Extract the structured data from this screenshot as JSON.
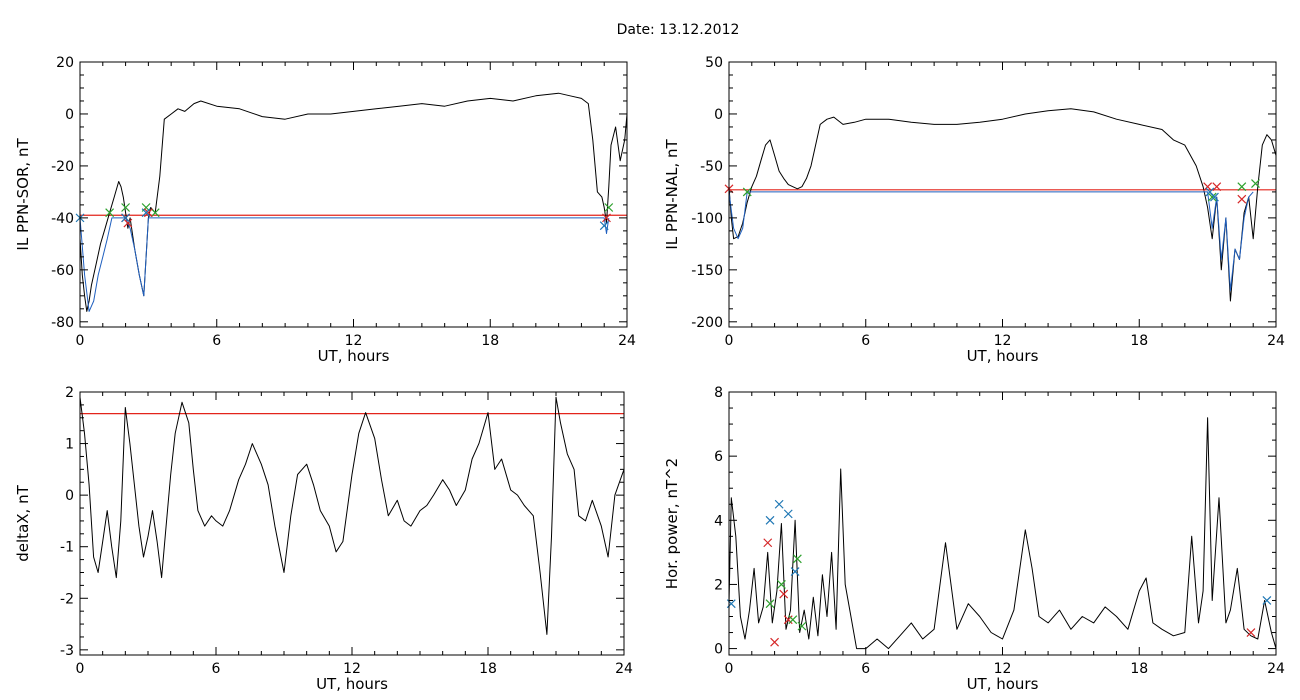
{
  "figure": {
    "title": "Date:  13.12.2012"
  },
  "chart_data": [
    {
      "id": "p1",
      "type": "line",
      "xlabel": "UT, hours",
      "ylabel": "IL PPN-SOR, nT",
      "xlim": [
        0,
        24
      ],
      "ylim": [
        -82,
        20
      ],
      "xticks": [
        0,
        6,
        12,
        18,
        24
      ],
      "yticks": [
        20,
        0,
        -20,
        -40,
        -60,
        -80
      ],
      "threshold": -39,
      "series": [
        {
          "color": "#000000",
          "x": [
            0,
            0.1,
            0.2,
            0.3,
            0.4,
            0.5,
            0.7,
            0.9,
            1.1,
            1.3,
            1.5,
            1.7,
            1.8,
            1.9,
            2.0,
            2.1,
            2.2,
            2.4,
            2.6,
            2.8,
            2.9,
            3.0,
            3.1,
            3.3,
            3.5,
            3.7,
            4.0,
            4.3,
            4.6,
            5.0,
            5.3,
            6,
            7,
            8,
            9,
            10,
            11,
            12,
            13,
            14,
            15,
            16,
            17,
            18,
            19,
            20,
            21,
            21.5,
            22,
            22.3,
            22.5,
            22.7,
            22.9,
            23.0,
            23.1,
            23.2,
            23.3,
            23.5,
            23.7,
            23.9,
            24
          ],
          "y": [
            -48,
            -62,
            -70,
            -76,
            -72,
            -66,
            -58,
            -50,
            -44,
            -38,
            -32,
            -26,
            -28,
            -32,
            -38,
            -44,
            -40,
            -52,
            -62,
            -70,
            -55,
            -40,
            -36,
            -38,
            -24,
            -2,
            0,
            2,
            1,
            4,
            5,
            3,
            2,
            -1,
            -2,
            0,
            0,
            1,
            2,
            3,
            4,
            3,
            5,
            6,
            5,
            7,
            8,
            7,
            6,
            4,
            -10,
            -30,
            -32,
            -36,
            -42,
            -28,
            -12,
            -5,
            -18,
            -10,
            0
          ]
        },
        {
          "color": "#1f5fbf",
          "x": [
            0,
            0.2,
            0.4,
            0.6,
            0.8,
            1.0,
            1.2,
            1.4,
            2.0,
            2.2,
            2.4,
            2.6,
            2.8,
            3.0,
            23.0,
            23.1,
            23.2
          ],
          "y": [
            -40,
            -62,
            -76,
            -72,
            -62,
            -55,
            -48,
            -40,
            -40,
            -44,
            -52,
            -62,
            -70,
            -40,
            -40,
            -46,
            -40
          ]
        }
      ],
      "markers": [
        {
          "symbol": "x",
          "color": "#2ca02c",
          "x": [
            1.3,
            2.0,
            2.9,
            3.3,
            23.2
          ],
          "y": [
            -38,
            -36,
            -36,
            -38,
            -36
          ]
        },
        {
          "symbol": "x",
          "color": "#d62728",
          "x": [
            2.0,
            2.1,
            3.0,
            23.1
          ],
          "y": [
            -40,
            -42,
            -38,
            -40
          ]
        },
        {
          "symbol": "x",
          "color": "#1f77b4",
          "x": [
            0,
            2.0,
            2.9,
            23.0
          ],
          "y": [
            -40,
            -40,
            -38,
            -43
          ]
        }
      ]
    },
    {
      "id": "p2",
      "type": "line",
      "xlabel": "UT, hours",
      "ylabel": "IL PPN-NAL, nT",
      "xlim": [
        0,
        24
      ],
      "ylim": [
        -205,
        50
      ],
      "xticks": [
        0,
        6,
        12,
        18,
        24
      ],
      "yticks": [
        50,
        0,
        -50,
        -100,
        -150,
        -200
      ],
      "threshold": -73,
      "series": [
        {
          "color": "#000000",
          "x": [
            0,
            0.1,
            0.2,
            0.4,
            0.6,
            0.8,
            1.0,
            1.2,
            1.4,
            1.6,
            1.8,
            2.0,
            2.2,
            2.4,
            2.6,
            2.8,
            3.0,
            3.2,
            3.4,
            3.6,
            3.8,
            4.0,
            4.3,
            4.6,
            5.0,
            5.5,
            6,
            7,
            8,
            9,
            10,
            11,
            12,
            13,
            14,
            15,
            16,
            17,
            18,
            19,
            19.5,
            20,
            20.5,
            20.8,
            21.0,
            21.2,
            21.4,
            21.6,
            21.8,
            22.0,
            22.2,
            22.4,
            22.6,
            22.8,
            23.0,
            23.2,
            23.4,
            23.6,
            23.8,
            24
          ],
          "y": [
            -70,
            -100,
            -120,
            -118,
            -105,
            -85,
            -70,
            -60,
            -45,
            -30,
            -25,
            -40,
            -55,
            -62,
            -68,
            -70,
            -72,
            -70,
            -62,
            -50,
            -30,
            -10,
            -5,
            -3,
            -10,
            -8,
            -5,
            -5,
            -8,
            -10,
            -10,
            -8,
            -5,
            0,
            3,
            5,
            2,
            -5,
            -10,
            -15,
            -25,
            -30,
            -50,
            -70,
            -90,
            -120,
            -80,
            -150,
            -100,
            -180,
            -130,
            -140,
            -95,
            -80,
            -120,
            -70,
            -30,
            -20,
            -25,
            -40
          ]
        },
        {
          "color": "#1f5fbf",
          "x": [
            0,
            0.2,
            0.4,
            0.6,
            0.8,
            21.0,
            21.2,
            21.4,
            21.6,
            21.8,
            22.0,
            22.2,
            22.4,
            22.6,
            22.8,
            23.0
          ],
          "y": [
            -75,
            -110,
            -120,
            -110,
            -75,
            -75,
            -110,
            -80,
            -140,
            -100,
            -170,
            -130,
            -140,
            -100,
            -80,
            -75
          ]
        }
      ],
      "markers": [
        {
          "symbol": "x",
          "color": "#2ca02c",
          "x": [
            0.8,
            21.2,
            22.5,
            23.1
          ],
          "y": [
            -75,
            -80,
            -70,
            -67
          ]
        },
        {
          "symbol": "x",
          "color": "#d62728",
          "x": [
            0,
            21.0,
            21.4,
            22.5
          ],
          "y": [
            -72,
            -70,
            -70,
            -82
          ]
        },
        {
          "symbol": "x",
          "color": "#1f77b4",
          "x": [
            21.1,
            21.3
          ],
          "y": [
            -75,
            -80
          ]
        }
      ]
    },
    {
      "id": "p3",
      "type": "line",
      "xlabel": "UT, hours",
      "ylabel": "deltaX, nT",
      "xlim": [
        0,
        24
      ],
      "ylim": [
        -3.1,
        2.0
      ],
      "xticks": [
        0,
        6,
        12,
        18,
        24
      ],
      "yticks": [
        2,
        1,
        0,
        -1,
        -2,
        -3
      ],
      "threshold": 1.58,
      "series": [
        {
          "color": "#000000",
          "x": [
            0,
            0.2,
            0.4,
            0.6,
            0.8,
            1.0,
            1.2,
            1.4,
            1.6,
            1.8,
            2.0,
            2.2,
            2.4,
            2.6,
            2.8,
            3.0,
            3.2,
            3.4,
            3.6,
            3.8,
            4.0,
            4.2,
            4.5,
            4.8,
            5.0,
            5.2,
            5.5,
            5.8,
            6.0,
            6.3,
            6.6,
            7.0,
            7.3,
            7.6,
            8.0,
            8.3,
            8.6,
            9.0,
            9.3,
            9.6,
            10.0,
            10.3,
            10.6,
            11.0,
            11.3,
            11.6,
            12.0,
            12.3,
            12.6,
            13.0,
            13.3,
            13.6,
            14.0,
            14.3,
            14.6,
            15.0,
            15.3,
            15.6,
            16.0,
            16.3,
            16.6,
            17.0,
            17.3,
            17.6,
            18.0,
            18.3,
            18.6,
            19.0,
            19.3,
            19.6,
            20.0,
            20.3,
            20.6,
            20.8,
            21.0,
            21.2,
            21.5,
            21.8,
            22.0,
            22.3,
            22.6,
            23.0,
            23.3,
            23.6,
            24.0
          ],
          "y": [
            1.9,
            1.2,
            0.2,
            -1.2,
            -1.5,
            -0.9,
            -0.3,
            -1.0,
            -1.6,
            -0.5,
            1.7,
            1.0,
            0.2,
            -0.6,
            -1.2,
            -0.8,
            -0.3,
            -0.9,
            -1.6,
            -0.6,
            0.4,
            1.2,
            1.8,
            1.4,
            0.5,
            -0.3,
            -0.6,
            -0.4,
            -0.5,
            -0.6,
            -0.3,
            0.3,
            0.6,
            1.0,
            0.6,
            0.2,
            -0.6,
            -1.5,
            -0.4,
            0.4,
            0.6,
            0.2,
            -0.3,
            -0.6,
            -1.1,
            -0.9,
            0.4,
            1.2,
            1.6,
            1.1,
            0.3,
            -0.4,
            -0.1,
            -0.5,
            -0.6,
            -0.3,
            -0.2,
            0.0,
            0.3,
            0.1,
            -0.2,
            0.1,
            0.7,
            1.0,
            1.6,
            0.5,
            0.7,
            0.1,
            0.0,
            -0.2,
            -0.4,
            -1.5,
            -2.7,
            -0.8,
            1.9,
            1.4,
            0.8,
            0.5,
            -0.4,
            -0.5,
            -0.1,
            -0.6,
            -1.2,
            0.0,
            0.5
          ]
        }
      ],
      "markers": []
    },
    {
      "id": "p4",
      "type": "line",
      "xlabel": "UT, hours",
      "ylabel": "Hor. power, nT^2",
      "xlim": [
        0,
        24
      ],
      "ylim": [
        -0.2,
        8
      ],
      "xticks": [
        0,
        6,
        12,
        18,
        24
      ],
      "yticks": [
        8,
        6,
        4,
        2,
        0
      ],
      "series": [
        {
          "color": "#000000",
          "x": [
            0,
            0.1,
            0.3,
            0.5,
            0.7,
            0.9,
            1.1,
            1.3,
            1.5,
            1.7,
            1.9,
            2.1,
            2.3,
            2.5,
            2.7,
            2.9,
            3.1,
            3.3,
            3.5,
            3.7,
            3.9,
            4.1,
            4.3,
            4.5,
            4.7,
            4.9,
            5.1,
            5.3,
            5.6,
            6.0,
            6.5,
            7.0,
            7.5,
            8.0,
            8.5,
            9.0,
            9.5,
            10.0,
            10.5,
            11.0,
            11.5,
            12.0,
            12.5,
            13.0,
            13.3,
            13.6,
            14.0,
            14.5,
            15.0,
            15.5,
            16.0,
            16.5,
            17.0,
            17.5,
            18.0,
            18.3,
            18.6,
            19.0,
            19.5,
            20.0,
            20.3,
            20.6,
            20.8,
            21.0,
            21.2,
            21.5,
            21.8,
            22.0,
            22.3,
            22.6,
            22.9,
            23.2,
            23.5,
            23.8,
            24.0
          ],
          "y": [
            1.4,
            4.7,
            3.5,
            1.0,
            0.3,
            1.2,
            2.5,
            0.8,
            1.3,
            3.0,
            0.8,
            1.8,
            3.9,
            0.6,
            1.2,
            4.0,
            0.5,
            1.2,
            0.3,
            1.6,
            0.4,
            2.3,
            1.0,
            3.0,
            0.6,
            5.6,
            2.0,
            1.2,
            0.0,
            0.0,
            0.3,
            0.0,
            0.4,
            0.8,
            0.3,
            0.6,
            3.3,
            0.6,
            1.4,
            1.0,
            0.5,
            0.3,
            1.2,
            3.7,
            2.5,
            1.0,
            0.8,
            1.2,
            0.6,
            1.0,
            0.8,
            1.3,
            1.0,
            0.6,
            1.8,
            2.2,
            0.8,
            0.6,
            0.4,
            0.5,
            3.5,
            0.8,
            1.8,
            7.2,
            1.5,
            4.7,
            0.8,
            1.2,
            2.5,
            0.6,
            0.4,
            0.3,
            1.5,
            0.5,
            0.0
          ]
        }
      ],
      "markers": [
        {
          "symbol": "x",
          "color": "#1f77b4",
          "x": [
            0.1,
            1.8,
            2.2,
            2.6,
            2.9,
            23.6
          ],
          "y": [
            1.4,
            4.0,
            4.5,
            4.2,
            2.4,
            1.5
          ]
        },
        {
          "symbol": "x",
          "color": "#d62728",
          "x": [
            1.7,
            2.0,
            2.4,
            2.6,
            22.9
          ],
          "y": [
            3.3,
            0.2,
            1.7,
            0.9,
            0.5
          ]
        },
        {
          "symbol": "x",
          "color": "#2ca02c",
          "x": [
            1.8,
            2.3,
            2.8,
            3.0,
            3.2
          ],
          "y": [
            1.4,
            2.0,
            0.9,
            2.8,
            0.7
          ]
        }
      ]
    }
  ]
}
